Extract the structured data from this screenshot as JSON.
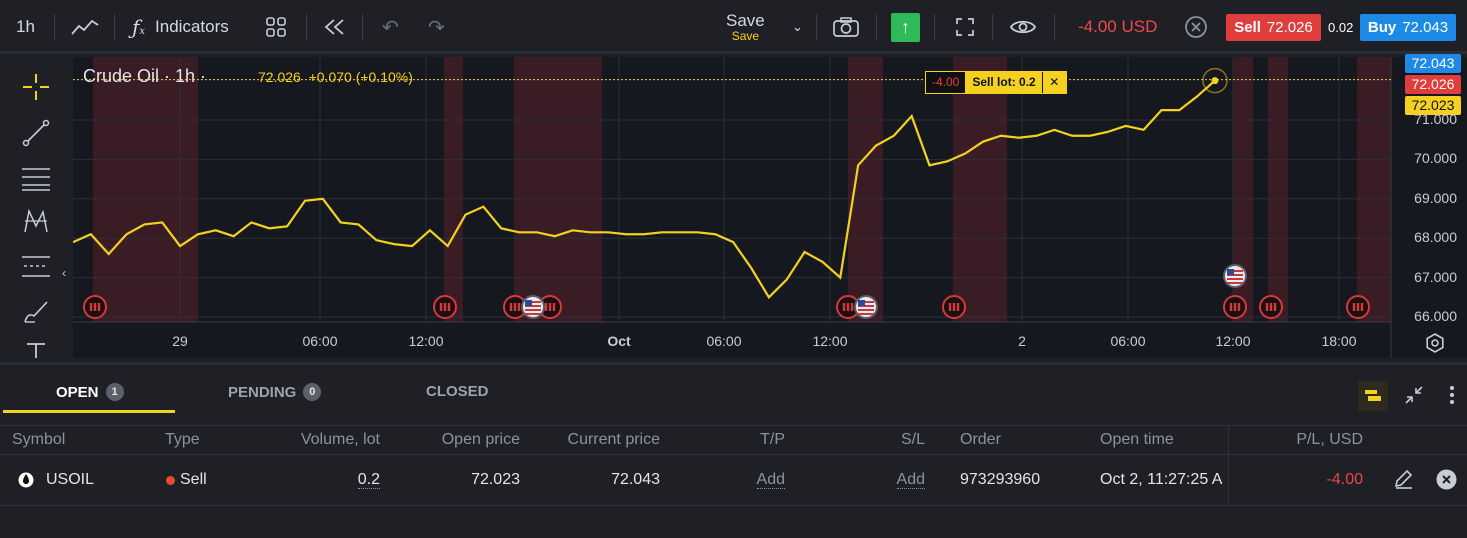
{
  "toolbar": {
    "timeframe": "1h",
    "indicators_label": "Indicators",
    "save_label": "Save",
    "save_sub": "Save",
    "pl_value": "-4.00 USD",
    "sell_label": "Sell",
    "sell_price": "72.026",
    "spread": "0.02",
    "buy_label": "Buy",
    "buy_price": "72.043"
  },
  "chart": {
    "title": "Crude Oil · 1h ·",
    "last_price": "72.026",
    "change": "+0.070 (+0.10%)",
    "ask_tag": "72.043",
    "bid_tag": "72.026",
    "open_tag": "72.023",
    "position_pl": "-4.00",
    "position_lot": "Sell lot: 0.2",
    "colors": {
      "line": "#f4d121",
      "session": "#3a1d24",
      "sell": "#e03d3d",
      "buy": "#1e8ae8"
    }
  },
  "chart_data": {
    "type": "line",
    "y_ticks": [
      "72.043",
      "72.026",
      "72.023",
      "71.000",
      "70.000",
      "69.000",
      "68.000",
      "67.000",
      "66.000"
    ],
    "x_ticks": [
      "29",
      "06:00",
      "12:00",
      "Oct",
      "06:00",
      "12:00",
      "2",
      "06:00",
      "12:00",
      "18:00"
    ],
    "ylim": [
      66.0,
      72.2
    ],
    "values": [
      67.9,
      68.1,
      67.6,
      68.1,
      68.35,
      68.4,
      67.8,
      68.1,
      68.2,
      68.05,
      68.4,
      68.25,
      68.3,
      68.95,
      69.0,
      68.4,
      68.35,
      67.95,
      67.85,
      67.8,
      68.2,
      67.8,
      68.6,
      68.8,
      68.25,
      68.15,
      68.15,
      68.05,
      68.2,
      68.15,
      68.15,
      68.1,
      68.1,
      68.15,
      68.15,
      68.15,
      68.1,
      67.9,
      67.25,
      66.5,
      66.95,
      67.65,
      67.4,
      67.0,
      69.85,
      70.35,
      70.6,
      71.1,
      69.85,
      69.95,
      70.15,
      70.45,
      70.6,
      70.55,
      70.6,
      70.75,
      70.6,
      70.6,
      70.7,
      70.85,
      70.75,
      71.25,
      71.25,
      71.6,
      72.0
    ]
  },
  "panel": {
    "tabs": [
      {
        "label": "OPEN",
        "count": "1"
      },
      {
        "label": "PENDING",
        "count": "0"
      },
      {
        "label": "CLOSED"
      }
    ],
    "columns": [
      "Symbol",
      "Type",
      "Volume, lot",
      "Open price",
      "Current price",
      "T/P",
      "S/L",
      "Order",
      "Open time",
      "P/L, USD"
    ],
    "row": {
      "symbol": "USOIL",
      "type": "Sell",
      "volume": "0.2",
      "open_price": "72.023",
      "current_price": "72.043",
      "tp": "Add",
      "sl": "Add",
      "order": "973293960",
      "open_time": "Oct 2, 11:27:25 A",
      "pl": "-4.00"
    }
  }
}
